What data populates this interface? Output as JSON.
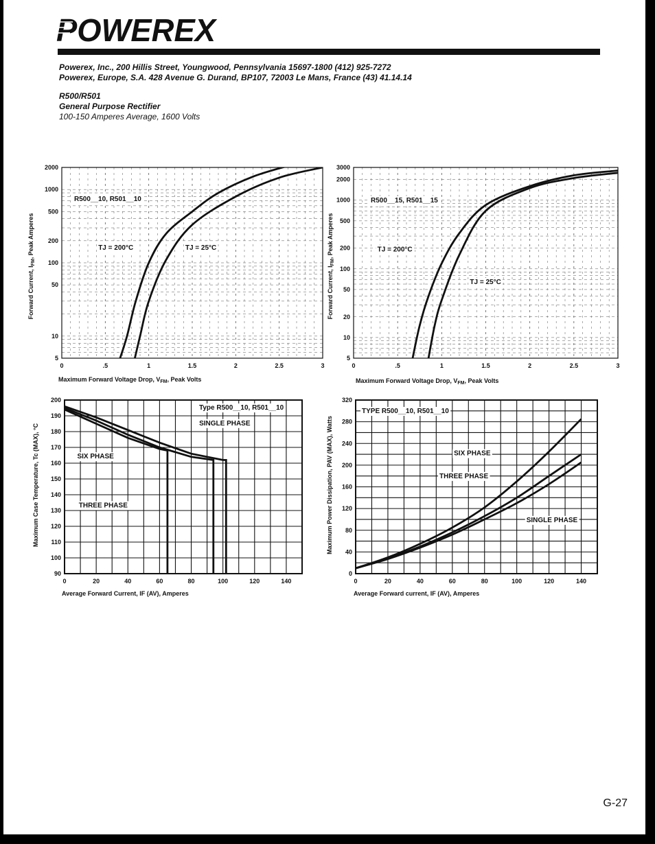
{
  "header": {
    "brand": "POWEREX",
    "address_lines": [
      "Powerex, Inc., 200 Hillis Street, Youngwood, Pennsylvania 15697-1800 (412) 925-7272",
      "Powerex, Europe, S.A. 428 Avenue G. Durand, BP107, 72003 Le Mans, France (43) 41.14.14"
    ],
    "part_number": "R500/R501",
    "product_type": "General Purpose Rectifier",
    "rating": "100-150 Amperes Average, 1600 Volts"
  },
  "footer": {
    "page_number": "G-27"
  },
  "colors": {
    "ink": "#111111",
    "frame": "#000000",
    "paper": "#ffffff"
  },
  "chart_data": [
    {
      "type": "line",
      "scale_y": "log",
      "xlabel": "Maximum Forward Voltage Drop, V",
      "xlabel_sub": "FM",
      "xlabel_tail": ", Peak Volts",
      "ylabel": "Forward Current, I",
      "ylabel_sub": "FM",
      "ylabel_tail": ", Peak Amperes",
      "xlim": [
        0,
        3
      ],
      "ylim": [
        5,
        2000
      ],
      "x_ticks": [
        {
          "v": 0,
          "label": "0"
        },
        {
          "v": 0.5,
          "label": ".5"
        },
        {
          "v": 1,
          "label": "1"
        },
        {
          "v": 1.5,
          "label": "1.5"
        },
        {
          "v": 2,
          "label": "2"
        },
        {
          "v": 2.5,
          "label": "2.5"
        },
        {
          "v": 3,
          "label": "3"
        }
      ],
      "y_ticks": [
        {
          "v": 5,
          "label": "5"
        },
        {
          "v": 10,
          "label": "10"
        },
        {
          "v": 50,
          "label": "50"
        },
        {
          "v": 100,
          "label": "100"
        },
        {
          "v": 200,
          "label": "200"
        },
        {
          "v": 500,
          "label": "500"
        },
        {
          "v": 1000,
          "label": "1000"
        },
        {
          "v": 2000,
          "label": "2000"
        }
      ],
      "annotation": "R500__10, R501__10",
      "series": [
        {
          "name": "TJ = 200°C",
          "x": [
            0.67,
            0.75,
            0.85,
            1.0,
            1.2,
            1.5,
            1.8,
            2.2,
            2.6
          ],
          "y": [
            5,
            10,
            30,
            100,
            250,
            500,
            900,
            1500,
            2100
          ]
        },
        {
          "name": "TJ = 25°C",
          "x": [
            0.84,
            0.9,
            1.0,
            1.2,
            1.5,
            2.0,
            2.5,
            3.0
          ],
          "y": [
            5,
            10,
            30,
            110,
            330,
            800,
            1450,
            2000
          ]
        }
      ],
      "series_labels": [
        {
          "text": "TJ = 200°C",
          "x": 0.42,
          "y": 150
        },
        {
          "text": "TJ = 25°C",
          "x": 1.42,
          "y": 150
        }
      ]
    },
    {
      "type": "line",
      "scale_y": "log",
      "xlabel": "Maximum Forward Voltage Drop, V",
      "xlabel_sub": "FM",
      "xlabel_tail": ", Peak Volts",
      "ylabel": "Forward Current, I",
      "ylabel_sub": "FM",
      "ylabel_tail": ", Peak Amperes",
      "xlim": [
        0,
        3
      ],
      "ylim": [
        5,
        3000
      ],
      "x_ticks": [
        {
          "v": 0,
          "label": "0"
        },
        {
          "v": 0.5,
          "label": ".5"
        },
        {
          "v": 1,
          "label": "1"
        },
        {
          "v": 1.5,
          "label": "1.5"
        },
        {
          "v": 2,
          "label": "2"
        },
        {
          "v": 2.5,
          "label": "2.5"
        },
        {
          "v": 3,
          "label": "3"
        }
      ],
      "y_ticks": [
        {
          "v": 5,
          "label": "5"
        },
        {
          "v": 10,
          "label": "10"
        },
        {
          "v": 20,
          "label": "20"
        },
        {
          "v": 50,
          "label": "50"
        },
        {
          "v": 100,
          "label": "100"
        },
        {
          "v": 200,
          "label": "200"
        },
        {
          "v": 500,
          "label": "500"
        },
        {
          "v": 1000,
          "label": "1000"
        },
        {
          "v": 2000,
          "label": "2000"
        },
        {
          "v": 3000,
          "label": "3000"
        }
      ],
      "annotation": "R500__15, R501__15",
      "series": [
        {
          "name": "TJ = 200°C",
          "x": [
            0.67,
            0.75,
            0.85,
            1.0,
            1.2,
            1.5,
            2.0,
            2.5,
            3.0
          ],
          "y": [
            5,
            15,
            40,
            120,
            330,
            850,
            1600,
            2300,
            2700
          ]
        },
        {
          "name": "TJ = 25°C",
          "x": [
            0.85,
            0.92,
            1.0,
            1.2,
            1.5,
            2.0,
            2.5,
            3.0
          ],
          "y": [
            5,
            15,
            35,
            160,
            700,
            1500,
            2100,
            2500
          ]
        }
      ],
      "series_labels": [
        {
          "text": "TJ = 200°C",
          "x": 0.27,
          "y": 180
        },
        {
          "text": "TJ = 25°C",
          "x": 1.32,
          "y": 60
        }
      ]
    },
    {
      "type": "line",
      "xlabel": "Average Forward Current, IF (AV), Amperes",
      "ylabel": "Maximum Case Temperature, Tc (MAX), °C",
      "xlim": [
        0,
        150
      ],
      "ylim": [
        90,
        200
      ],
      "x_ticks": [
        {
          "v": 0,
          "label": "0"
        },
        {
          "v": 20,
          "label": "20"
        },
        {
          "v": 40,
          "label": "40"
        },
        {
          "v": 60,
          "label": "60"
        },
        {
          "v": 80,
          "label": "80"
        },
        {
          "v": 100,
          "label": "100"
        },
        {
          "v": 120,
          "label": "120"
        },
        {
          "v": 140,
          "label": "140"
        }
      ],
      "y_ticks": [
        {
          "v": 90,
          "label": "90"
        },
        {
          "v": 100,
          "label": "100"
        },
        {
          "v": 110,
          "label": "110"
        },
        {
          "v": 120,
          "label": "120"
        },
        {
          "v": 130,
          "label": "130"
        },
        {
          "v": 140,
          "label": "140"
        },
        {
          "v": 150,
          "label": "150"
        },
        {
          "v": 160,
          "label": "160"
        },
        {
          "v": 170,
          "label": "170"
        },
        {
          "v": 180,
          "label": "180"
        },
        {
          "v": 190,
          "label": "190"
        },
        {
          "v": 200,
          "label": "200"
        }
      ],
      "annotation": "Type R500__10, R501__10",
      "series": [
        {
          "name": "SINGLE PHASE",
          "x": [
            0,
            20,
            40,
            60,
            80,
            100,
            102,
            102
          ],
          "y": [
            196,
            189,
            181,
            173,
            166,
            162,
            162,
            90
          ]
        },
        {
          "name": "THREE PHASE",
          "x": [
            0,
            20,
            40,
            60,
            80,
            94,
            94
          ],
          "y": [
            195,
            187,
            178,
            170,
            164,
            162,
            90
          ]
        },
        {
          "name": "SIX PHASE",
          "x": [
            0,
            20,
            40,
            60,
            65,
            65
          ],
          "y": [
            194,
            185,
            176,
            169,
            168,
            90
          ]
        }
      ],
      "series_labels": [
        {
          "text": "SINGLE PHASE",
          "x": 85,
          "y": 184
        },
        {
          "text": "SIX PHASE",
          "x": 8,
          "y": 163
        },
        {
          "text": "THREE PHASE",
          "x": 9,
          "y": 132
        }
      ]
    },
    {
      "type": "line",
      "xlabel": "Average Forward current, IF (AV), Amperes",
      "ylabel": "Maximum Power Dissipation, PAV (MAX), Watts",
      "xlim": [
        0,
        150
      ],
      "ylim": [
        0,
        320
      ],
      "x_ticks": [
        {
          "v": 0,
          "label": "0"
        },
        {
          "v": 20,
          "label": "20"
        },
        {
          "v": 40,
          "label": "40"
        },
        {
          "v": 60,
          "label": "60"
        },
        {
          "v": 80,
          "label": "80"
        },
        {
          "v": 100,
          "label": "100"
        },
        {
          "v": 120,
          "label": "120"
        },
        {
          "v": 140,
          "label": "140"
        }
      ],
      "y_ticks": [
        {
          "v": 0,
          "label": "0"
        },
        {
          "v": 40,
          "label": "40"
        },
        {
          "v": 80,
          "label": "80"
        },
        {
          "v": 120,
          "label": "120"
        },
        {
          "v": 160,
          "label": "160"
        },
        {
          "v": 200,
          "label": "200"
        },
        {
          "v": 240,
          "label": "240"
        },
        {
          "v": 280,
          "label": "280"
        },
        {
          "v": 320,
          "label": "320"
        }
      ],
      "annotation": "TYPE R500__10, R501__10",
      "series": [
        {
          "name": "SIX PHASE",
          "x": [
            0,
            20,
            40,
            60,
            80,
            100,
            120,
            140
          ],
          "y": [
            10,
            30,
            55,
            85,
            122,
            170,
            225,
            285
          ]
        },
        {
          "name": "THREE PHASE",
          "x": [
            0,
            20,
            40,
            60,
            80,
            100,
            120,
            140
          ],
          "y": [
            10,
            28,
            50,
            76,
            106,
            140,
            180,
            220
          ]
        },
        {
          "name": "SINGLE PHASE",
          "x": [
            0,
            20,
            40,
            60,
            80,
            100,
            120,
            140
          ],
          "y": [
            10,
            27,
            48,
            72,
            100,
            130,
            165,
            205
          ]
        }
      ],
      "series_labels": [
        {
          "text": "SIX PHASE",
          "x": 61,
          "y": 218
        },
        {
          "text": "THREE PHASE",
          "x": 52,
          "y": 176
        },
        {
          "text": "SINGLE PHASE",
          "x": 106,
          "y": 95
        }
      ]
    }
  ]
}
